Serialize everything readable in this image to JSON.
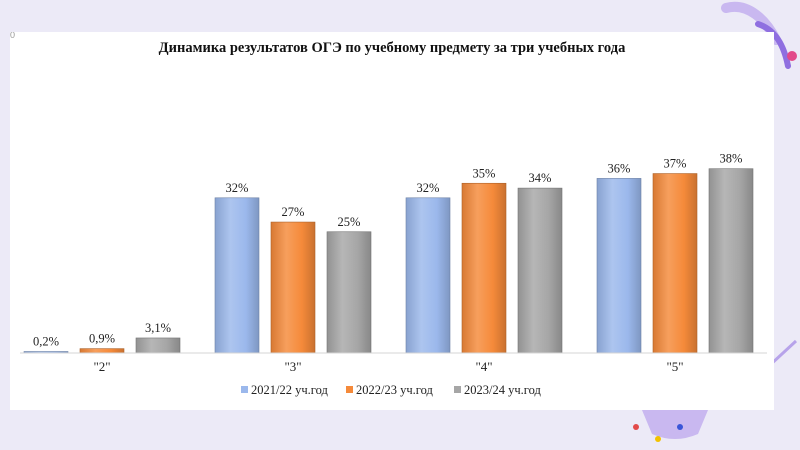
{
  "slide": {
    "corner_mark": "0"
  },
  "chart_data": {
    "type": "bar",
    "title": "Динамика результатов ОГЭ по учебному предмету за три учебных года",
    "xlabel": "",
    "ylabel": "",
    "categories": [
      "\"2\"",
      "\"3\"",
      "\"4\"",
      "\"5\""
    ],
    "ylim": [
      0,
      40
    ],
    "grid": false,
    "legend_position": "bottom",
    "series": [
      {
        "name": "2021/22 уч.год",
        "color": "#9bb8ec",
        "values": [
          0.2,
          32,
          32,
          36
        ],
        "labels": [
          "0,2%",
          "32%",
          "32%",
          "36%"
        ]
      },
      {
        "name": "2022/23 уч.год",
        "color": "#f58a3a",
        "values": [
          0.9,
          27,
          35,
          37
        ],
        "labels": [
          "0,9%",
          "27%",
          "35%",
          "37%"
        ]
      },
      {
        "name": "2023/24 уч.год",
        "color": "#a6a6a6",
        "values": [
          3.1,
          25,
          34,
          38
        ],
        "labels": [
          "3,1%",
          "25%",
          "34%",
          "38%"
        ]
      }
    ]
  }
}
